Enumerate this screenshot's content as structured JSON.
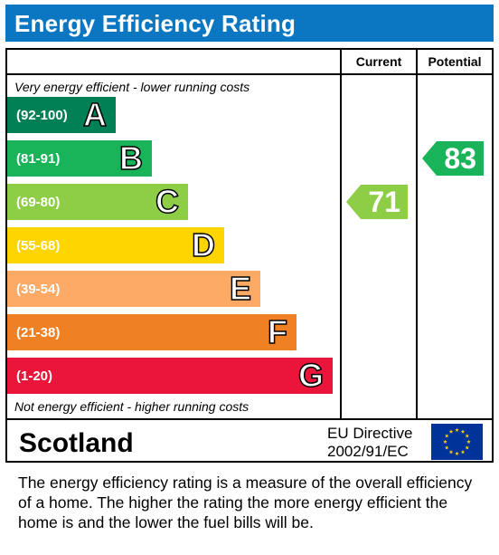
{
  "title": "Energy Efficiency Rating",
  "columns": {
    "current": "Current",
    "potential": "Potential"
  },
  "top_note": "Very energy efficient - lower running costs",
  "bottom_note": "Not energy efficient - higher running costs",
  "chart_data": {
    "type": "bar",
    "bands": [
      {
        "range": "(92-100)",
        "letter": "A",
        "color": "#008054"
      },
      {
        "range": "(81-91)",
        "letter": "B",
        "color": "#19b459"
      },
      {
        "range": "(69-80)",
        "letter": "C",
        "color": "#8dce46"
      },
      {
        "range": "(55-68)",
        "letter": "D",
        "color": "#ffd500"
      },
      {
        "range": "(39-54)",
        "letter": "E",
        "color": "#fcaa65"
      },
      {
        "range": "(21-38)",
        "letter": "F",
        "color": "#ef8023"
      },
      {
        "range": "(1-20)",
        "letter": "G",
        "color": "#e9153b"
      }
    ],
    "current": {
      "value": 71,
      "band": "C",
      "color": "#8dce46"
    },
    "potential": {
      "value": 83,
      "band": "B",
      "color": "#19b459"
    }
  },
  "footer": {
    "region": "Scotland",
    "directive_line1": "EU Directive",
    "directive_line2": "2002/91/EC"
  },
  "description": "The energy efficiency rating is a measure of the overall efficiency of a home.  The higher the rating the more energy efficient the home is and the lower the fuel bills will be."
}
